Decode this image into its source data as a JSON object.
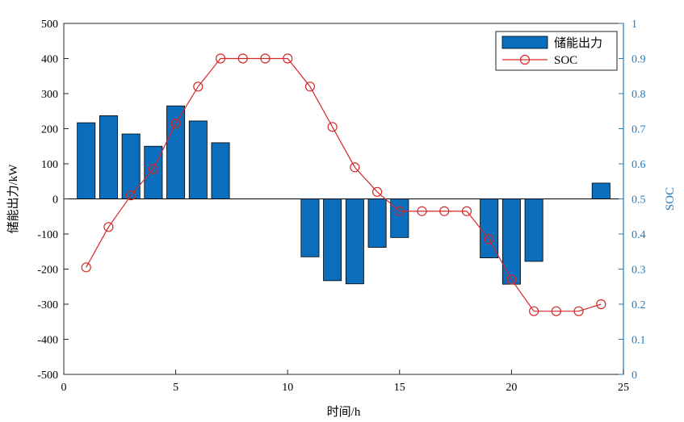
{
  "chart_data": {
    "type": "bar+line",
    "x": [
      1,
      2,
      3,
      4,
      5,
      6,
      7,
      8,
      9,
      10,
      11,
      12,
      13,
      14,
      15,
      16,
      17,
      18,
      19,
      20,
      21,
      22,
      23,
      24
    ],
    "series": [
      {
        "name": "储能出力",
        "type": "bar",
        "axis": "left",
        "color": "#0a6ebd",
        "values": [
          217,
          237,
          185,
          150,
          265,
          222,
          160,
          0,
          0,
          0,
          -165,
          -233,
          -242,
          -138,
          -110,
          0,
          0,
          0,
          -168,
          -243,
          -178,
          0,
          0,
          45
        ]
      },
      {
        "name": "SOC",
        "type": "line",
        "axis": "right",
        "color": "#d62728",
        "marker": "open-circle",
        "values": [
          0.305,
          0.42,
          0.51,
          0.585,
          0.715,
          0.82,
          0.9,
          0.9,
          0.9,
          0.9,
          0.82,
          0.705,
          0.59,
          0.52,
          0.465,
          0.465,
          0.465,
          0.465,
          0.385,
          0.27,
          0.18,
          0.18,
          0.18,
          0.2
        ]
      }
    ],
    "xlabel": "时间/h",
    "ylabel_left": "储能出力/kW",
    "ylabel_right": "SOC",
    "xlim": [
      0,
      25
    ],
    "ylim_left": [
      -500,
      500
    ],
    "ylim_right": [
      0,
      1
    ],
    "xticks": [
      "0",
      "5",
      "10",
      "15",
      "20",
      "25"
    ],
    "yticks_left": [
      "500",
      "400",
      "300",
      "200",
      "100",
      "0",
      "-100",
      "-200",
      "-300",
      "-400",
      "-500"
    ],
    "yticks_right": [
      "1",
      "0.9",
      "0.8",
      "0.7",
      "0.6",
      "0.5",
      "0.4",
      "0.3",
      "0.2",
      "0.1",
      "0"
    ],
    "grid": false,
    "legend_position": "top-right",
    "right_axis_color": "#1f7bbf"
  }
}
